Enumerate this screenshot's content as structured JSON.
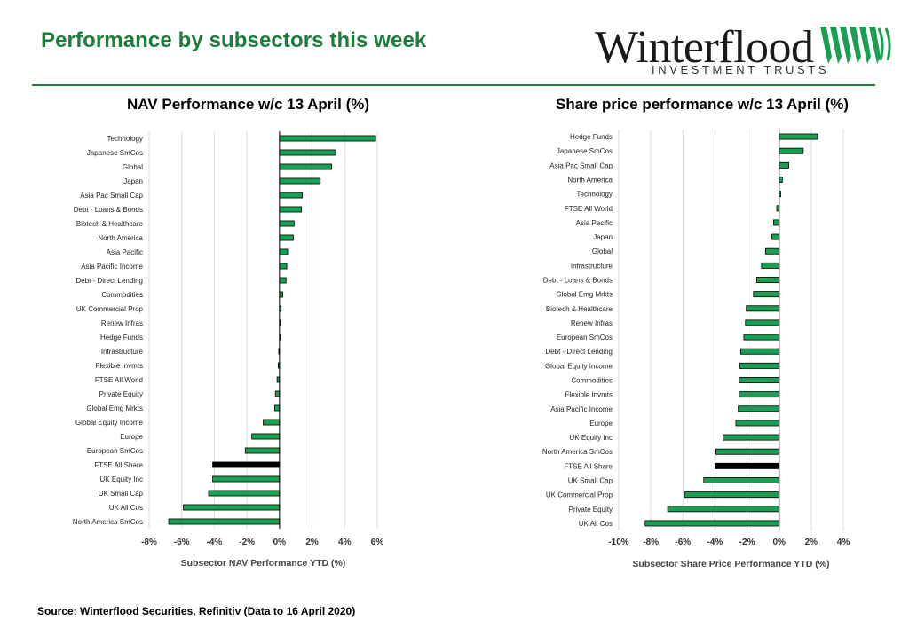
{
  "header": {
    "title": "Performance by subsectors this week",
    "logo_word": "Winterflood",
    "logo_sub": "INVESTMENT TRUSTS"
  },
  "footer": {
    "source": "Source: Winterflood Securities, Refinitiv  (Data to 16 April 2020)"
  },
  "colors": {
    "bar": "#1a9e52",
    "highlight": "#000000",
    "grid": "#d9d9d9",
    "title_green": "#1e7d3a"
  },
  "chart_data": [
    {
      "type": "bar",
      "orientation": "horizontal",
      "title": "NAV Performance w/c 13 April (%)",
      "xlabel": "Subsector NAV Performance YTD (%)",
      "xlim": [
        -8,
        6
      ],
      "xticks": [
        -8,
        -6,
        -4,
        -2,
        0,
        2,
        4,
        6
      ],
      "tick_labels": [
        "-8%",
        "-6%",
        "-4%",
        "-2%",
        "0%",
        "2%",
        "4%",
        "6%"
      ],
      "grid": true,
      "highlight": "FTSE All Share",
      "categories": [
        "Technology",
        "Japanese SmCos",
        "Global",
        "Japan",
        "Asia Pac Small Cap",
        "Debt - Loans & Bonds",
        "Biotech & Healthcare",
        "North America",
        "Asia Pacific",
        "Asia Pacific Income",
        "Debt - Direct Lending",
        "Commodities",
        "UK Commercial Prop",
        "Renew Infras",
        "Hedge Funds",
        "Infrastructure",
        "Flexible Invmts",
        "FTSE All World",
        "Private Equity",
        "Global Emg Mrkts",
        "Global Equity Income",
        "Europe",
        "European SmCos",
        "FTSE All Share",
        "UK Equity Inc",
        "UK Small Cap",
        "UK All Cos",
        "North America SmCos"
      ],
      "values": [
        5.9,
        3.4,
        3.2,
        2.5,
        1.4,
        1.35,
        0.9,
        0.85,
        0.5,
        0.45,
        0.4,
        0.2,
        0.1,
        0.05,
        0.03,
        -0.05,
        -0.08,
        -0.15,
        -0.25,
        -0.3,
        -1.0,
        -1.7,
        -2.1,
        -4.1,
        -4.1,
        -4.35,
        -5.9,
        -6.8
      ]
    },
    {
      "type": "bar",
      "orientation": "horizontal",
      "title": "Share price performance w/c 13 April (%)",
      "xlabel": "Subsector Share Price Performance YTD (%)",
      "xlim": [
        -10,
        4
      ],
      "xticks": [
        -10,
        -8,
        -6,
        -4,
        -2,
        0,
        2,
        4
      ],
      "tick_labels": [
        "-10%",
        "-8%",
        "-6%",
        "-4%",
        "-2%",
        "0%",
        "2%",
        "4%"
      ],
      "grid": true,
      "highlight": "FTSE All Share",
      "categories": [
        "Hedge Funds",
        "Japanese SmCos",
        "Asia Pac Small Cap",
        "North America",
        "Technology",
        "FTSE All World",
        "Asia Pacific",
        "Japan",
        "Global",
        "Infrastructure",
        "Debt - Loans & Bonds",
        "Global Emg Mrkts",
        "Biotech & Healthcare",
        "Renew Infras",
        "European SmCos",
        "Debt - Direct Lending",
        "Global Equity Income",
        "Commodities",
        "Flexible Invmts",
        "Asia Pacific Income",
        "Europe",
        "UK Equity Inc",
        "North America SmCos",
        "FTSE All Share",
        "UK Small Cap",
        "UK Commercial Prop",
        "Private Equity",
        "UK All Cos"
      ],
      "values": [
        2.4,
        1.5,
        0.6,
        0.2,
        0.1,
        -0.15,
        -0.35,
        -0.45,
        -0.85,
        -1.1,
        -1.4,
        -1.6,
        -2.05,
        -2.1,
        -2.2,
        -2.4,
        -2.45,
        -2.5,
        -2.5,
        -2.55,
        -2.7,
        -3.5,
        -3.95,
        -4.0,
        -4.7,
        -5.9,
        -6.95,
        -8.35
      ]
    }
  ]
}
